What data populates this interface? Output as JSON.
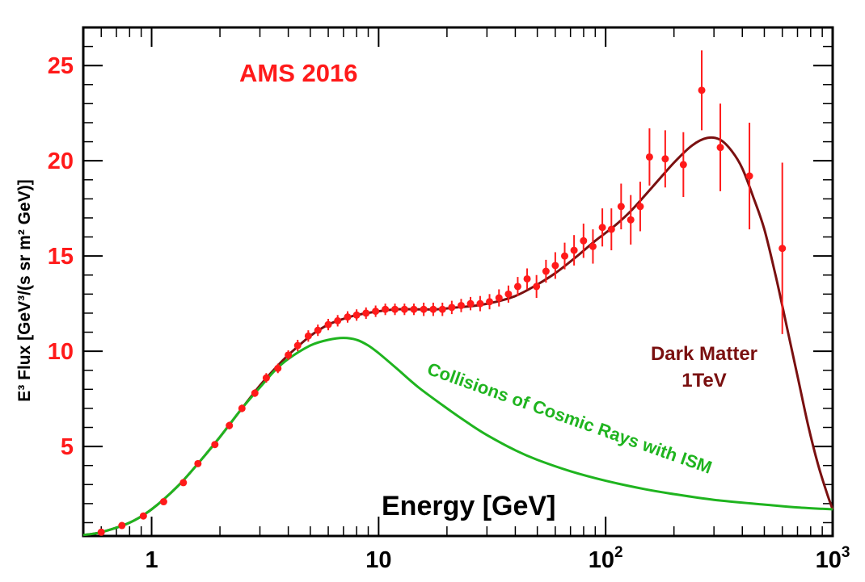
{
  "colors": {
    "data_points": "#ff1a1a",
    "dark_matter_curve": "#7a1010",
    "background_curve": "#1fb41f",
    "y_tick_labels": "#ff1a1a",
    "title_text": "#ff1a1a",
    "frame": "#000000"
  },
  "chart_data": {
    "type": "scatter",
    "title": "AMS 2016",
    "xlabel": "Energy [GeV]",
    "ylabel": "E³ Flux [GeV³/(s sr m² GeV)]",
    "xscale": "log",
    "xlim": [
      0.5,
      1000
    ],
    "ylim": [
      0.3,
      27
    ],
    "grid": false,
    "x_ticks": [
      {
        "value": 1,
        "label": "1",
        "exp": ""
      },
      {
        "value": 10,
        "label": "10",
        "exp": ""
      },
      {
        "value": 100,
        "label": "10",
        "exp": "2"
      },
      {
        "value": 1000,
        "label": "10",
        "exp": "3"
      }
    ],
    "y_ticks": [
      {
        "value": 5,
        "label": "5"
      },
      {
        "value": 10,
        "label": "10"
      },
      {
        "value": 15,
        "label": "15"
      },
      {
        "value": 20,
        "label": "20"
      },
      {
        "value": 25,
        "label": "25"
      }
    ],
    "annotations": {
      "dark_matter": [
        "Dark Matter",
        "1TeV"
      ],
      "background": "Collisions of Cosmic Rays with ISM"
    },
    "series": [
      {
        "name": "AMS 2016",
        "kind": "points",
        "x": [
          0.6,
          0.74,
          0.92,
          1.13,
          1.38,
          1.6,
          1.9,
          2.2,
          2.5,
          2.85,
          3.2,
          3.6,
          4.0,
          4.4,
          4.9,
          5.4,
          6.0,
          6.6,
          7.3,
          8.0,
          8.8,
          9.7,
          10.7,
          11.8,
          13.0,
          14.3,
          15.8,
          17.4,
          19.1,
          21.0,
          23.1,
          25.4,
          28.0,
          30.8,
          33.9,
          37.3,
          41.0,
          45.1,
          49.6,
          54.6,
          60.0,
          66.0,
          72.6,
          79.9,
          87.9,
          96.7,
          106,
          117,
          129,
          142,
          156,
          183,
          220,
          265,
          320,
          430,
          600
        ],
        "y": [
          0.5,
          0.85,
          1.35,
          2.1,
          3.1,
          4.1,
          5.1,
          6.1,
          7.0,
          7.8,
          8.6,
          9.1,
          9.8,
          10.3,
          10.8,
          11.1,
          11.4,
          11.6,
          11.8,
          11.9,
          12.0,
          12.1,
          12.2,
          12.2,
          12.2,
          12.2,
          12.2,
          12.2,
          12.2,
          12.3,
          12.4,
          12.5,
          12.5,
          12.6,
          12.8,
          13.0,
          13.4,
          13.8,
          13.4,
          14.2,
          14.5,
          15.0,
          15.3,
          15.8,
          15.5,
          16.5,
          16.4,
          17.6,
          16.9,
          17.6,
          20.2,
          20.1,
          19.8,
          23.7,
          20.7,
          19.2,
          15.4
        ],
        "yerr": [
          0.1,
          0.1,
          0.12,
          0.15,
          0.15,
          0.15,
          0.15,
          0.2,
          0.2,
          0.2,
          0.25,
          0.25,
          0.25,
          0.3,
          0.3,
          0.3,
          0.3,
          0.3,
          0.3,
          0.3,
          0.3,
          0.3,
          0.3,
          0.3,
          0.3,
          0.3,
          0.35,
          0.35,
          0.35,
          0.35,
          0.35,
          0.35,
          0.4,
          0.4,
          0.45,
          0.45,
          0.5,
          0.55,
          0.6,
          0.6,
          0.7,
          0.7,
          0.8,
          0.9,
          0.9,
          1.0,
          1.1,
          1.2,
          1.3,
          1.3,
          1.5,
          1.5,
          1.7,
          2.1,
          2.3,
          2.8,
          4.5
        ]
      },
      {
        "name": "Dark Matter 1TeV",
        "kind": "curve",
        "x": [
          0.5,
          0.6,
          0.8,
          1.0,
          1.3,
          1.6,
          2.0,
          2.5,
          3.0,
          3.5,
          4.0,
          5.0,
          6.0,
          7.0,
          8.0,
          10,
          12,
          15,
          18,
          22,
          27,
          33,
          40,
          50,
          60,
          75,
          90,
          110,
          130,
          160,
          200,
          240,
          280,
          320,
          360,
          400,
          450,
          500,
          560,
          620,
          700,
          780,
          860,
          940,
          1000
        ],
        "y": [
          0.35,
          0.5,
          1.0,
          1.7,
          2.9,
          4.1,
          5.5,
          7.0,
          8.2,
          9.1,
          9.8,
          10.8,
          11.4,
          11.7,
          11.9,
          12.1,
          12.2,
          12.2,
          12.2,
          12.3,
          12.4,
          12.6,
          12.9,
          13.5,
          14.1,
          15.0,
          15.8,
          16.6,
          17.4,
          18.6,
          19.9,
          20.8,
          21.2,
          21.1,
          20.5,
          19.6,
          18.0,
          16.4,
          14.0,
          11.6,
          8.7,
          6.1,
          4.1,
          2.6,
          1.7
        ]
      },
      {
        "name": "Collisions of Cosmic Rays with ISM",
        "kind": "curve",
        "x": [
          0.5,
          0.6,
          0.8,
          1.0,
          1.3,
          1.6,
          2.0,
          2.5,
          3.0,
          3.5,
          4.0,
          5.0,
          6.0,
          7.0,
          8.0,
          9.0,
          10,
          12,
          15,
          20,
          25,
          30,
          40,
          50,
          70,
          100,
          150,
          200,
          300,
          500,
          700,
          1000
        ],
        "y": [
          0.35,
          0.5,
          1.0,
          1.7,
          2.9,
          4.1,
          5.5,
          7.0,
          8.1,
          9.0,
          9.6,
          10.3,
          10.6,
          10.7,
          10.6,
          10.3,
          9.9,
          9.1,
          8.1,
          7.0,
          6.2,
          5.6,
          4.8,
          4.3,
          3.7,
          3.2,
          2.75,
          2.5,
          2.2,
          1.95,
          1.8,
          1.7
        ]
      }
    ]
  }
}
